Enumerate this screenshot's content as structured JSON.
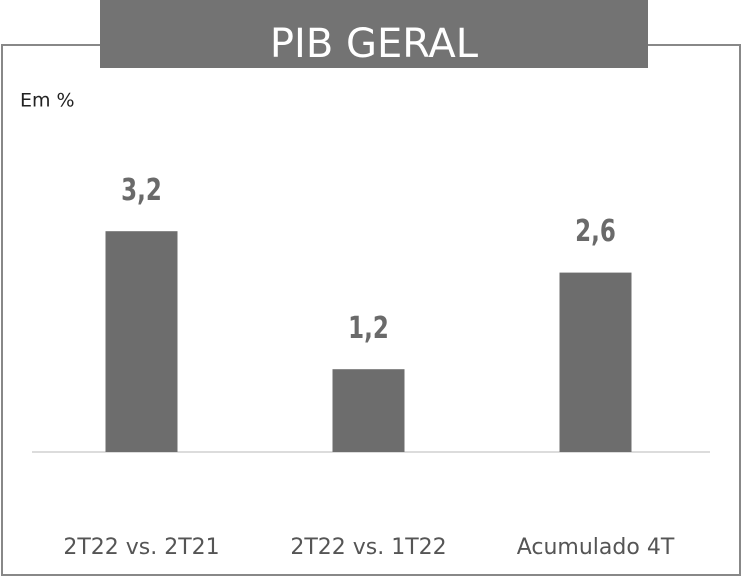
{
  "chart_data": {
    "type": "bar",
    "title": "PIB GERAL",
    "unit_label": "Em %",
    "categories": [
      "2T22 vs. 2T21",
      "2T22 vs. 1T22",
      "Acumulado 4T"
    ],
    "values": [
      3.2,
      1.2,
      2.6
    ],
    "value_labels": [
      "3,2",
      "1,2",
      "2,6"
    ],
    "color": "#6d6d6d"
  }
}
